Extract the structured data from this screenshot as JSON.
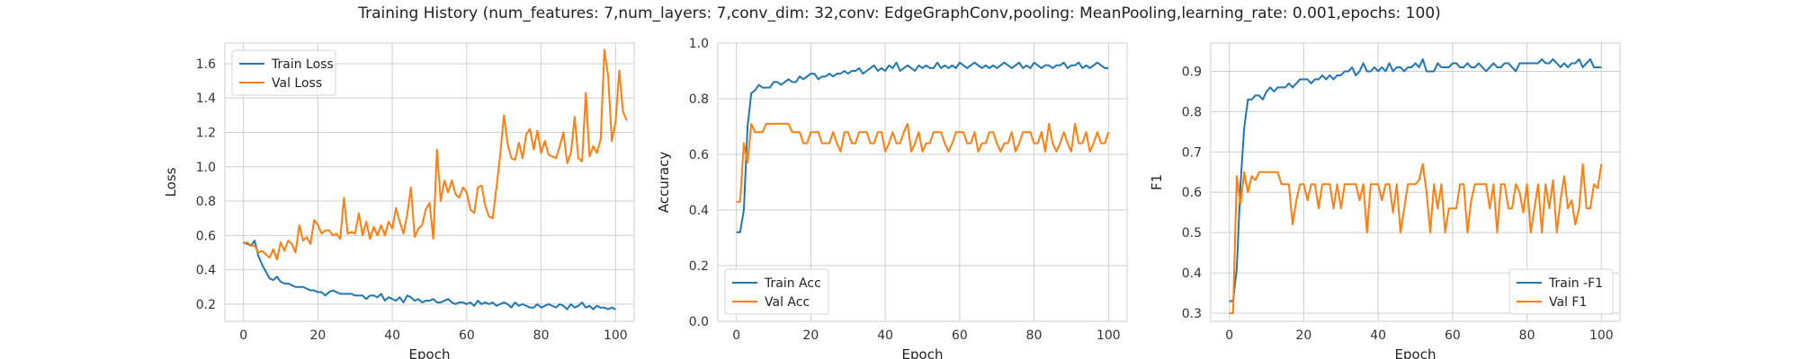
{
  "figure": {
    "suptitle": "Training History (num_features: 7,num_layers: 7,conv_dim: 32,conv: EdgeGraphConv,pooling: MeanPooling,learning_rate: 0.001,epochs: 100)"
  },
  "chart_data": [
    {
      "type": "line",
      "xlabel": "Epoch",
      "ylabel": "Loss",
      "xlim": [
        -5,
        105
      ],
      "ylim": [
        0.1,
        1.72
      ],
      "xticks": [
        0,
        20,
        40,
        60,
        80,
        100
      ],
      "xtick_labels": [
        "0",
        "20",
        "40",
        "60",
        "80",
        "100"
      ],
      "yticks": [
        0.2,
        0.4,
        0.6,
        0.8,
        1.0,
        1.2,
        1.4,
        1.6
      ],
      "ytick_labels": [
        "0.2",
        "0.4",
        "0.6",
        "0.8",
        "1.0",
        "1.2",
        "1.4",
        "1.6"
      ],
      "grid": true,
      "legend_position": "upper-left",
      "series": [
        {
          "name": "Train Loss",
          "color": "#1f77b4",
          "values": [
            0.56,
            0.55,
            0.54,
            0.57,
            0.48,
            0.43,
            0.39,
            0.35,
            0.34,
            0.36,
            0.33,
            0.32,
            0.32,
            0.31,
            0.3,
            0.3,
            0.3,
            0.29,
            0.28,
            0.28,
            0.27,
            0.27,
            0.25,
            0.27,
            0.28,
            0.27,
            0.26,
            0.26,
            0.26,
            0.26,
            0.25,
            0.25,
            0.25,
            0.23,
            0.25,
            0.25,
            0.24,
            0.26,
            0.22,
            0.24,
            0.23,
            0.22,
            0.24,
            0.21,
            0.25,
            0.24,
            0.22,
            0.23,
            0.21,
            0.22,
            0.22,
            0.23,
            0.21,
            0.21,
            0.22,
            0.23,
            0.21,
            0.2,
            0.21,
            0.21,
            0.2,
            0.21,
            0.19,
            0.22,
            0.2,
            0.21,
            0.2,
            0.21,
            0.19,
            0.2,
            0.21,
            0.2,
            0.18,
            0.21,
            0.19,
            0.2,
            0.19,
            0.18,
            0.18,
            0.2,
            0.18,
            0.19,
            0.2,
            0.19,
            0.18,
            0.2,
            0.19,
            0.17,
            0.2,
            0.18,
            0.19,
            0.21,
            0.18,
            0.19,
            0.17,
            0.19,
            0.18,
            0.18,
            0.17,
            0.18,
            0.17
          ]
        },
        {
          "name": "Val Loss",
          "color": "#ff7f0e",
          "values": [
            0.55,
            0.56,
            0.54,
            0.54,
            0.5,
            0.51,
            0.49,
            0.47,
            0.52,
            0.46,
            0.56,
            0.51,
            0.57,
            0.55,
            0.5,
            0.66,
            0.57,
            0.59,
            0.55,
            0.69,
            0.66,
            0.61,
            0.63,
            0.63,
            0.6,
            0.61,
            0.58,
            0.82,
            0.61,
            0.62,
            0.61,
            0.73,
            0.6,
            0.68,
            0.58,
            0.65,
            0.6,
            0.66,
            0.6,
            0.68,
            0.64,
            0.76,
            0.68,
            0.61,
            0.72,
            0.88,
            0.59,
            0.64,
            0.66,
            0.75,
            0.79,
            0.58,
            1.1,
            0.8,
            0.92,
            0.85,
            0.92,
            0.84,
            0.82,
            0.88,
            0.85,
            0.75,
            0.73,
            0.88,
            0.89,
            0.77,
            0.71,
            0.7,
            0.88,
            1.07,
            1.3,
            1.13,
            1.05,
            1.04,
            1.14,
            1.05,
            1.19,
            1.22,
            1.1,
            1.21,
            1.08,
            1.15,
            1.07,
            1.06,
            1.05,
            1.12,
            1.2,
            1.02,
            1.08,
            1.29,
            1.05,
            1.03,
            1.43,
            1.06,
            1.12,
            1.08,
            1.16,
            1.68,
            1.53,
            1.15,
            1.26,
            1.56,
            1.32,
            1.27
          ]
        }
      ]
    },
    {
      "type": "line",
      "xlabel": "Epoch",
      "ylabel": "Accuracy",
      "xlim": [
        -5,
        105
      ],
      "ylim": [
        0.0,
        1.0
      ],
      "xticks": [
        0,
        20,
        40,
        60,
        80,
        100
      ],
      "xtick_labels": [
        "0",
        "20",
        "40",
        "60",
        "80",
        "100"
      ],
      "yticks": [
        0.0,
        0.2,
        0.4,
        0.6,
        0.8,
        1.0
      ],
      "ytick_labels": [
        "0.0",
        "0.2",
        "0.4",
        "0.6",
        "0.8",
        "1.0"
      ],
      "grid": true,
      "legend_position": "lower-left",
      "series": [
        {
          "name": "Train Acc",
          "color": "#1f77b4",
          "values": [
            0.32,
            0.32,
            0.4,
            0.7,
            0.82,
            0.83,
            0.85,
            0.84,
            0.84,
            0.84,
            0.86,
            0.86,
            0.85,
            0.86,
            0.87,
            0.86,
            0.86,
            0.88,
            0.87,
            0.88,
            0.89,
            0.89,
            0.87,
            0.88,
            0.88,
            0.89,
            0.88,
            0.89,
            0.89,
            0.9,
            0.89,
            0.9,
            0.9,
            0.91,
            0.89,
            0.9,
            0.91,
            0.92,
            0.9,
            0.91,
            0.9,
            0.92,
            0.91,
            0.93,
            0.9,
            0.91,
            0.92,
            0.91,
            0.9,
            0.92,
            0.91,
            0.92,
            0.91,
            0.91,
            0.93,
            0.91,
            0.92,
            0.91,
            0.92,
            0.91,
            0.93,
            0.92,
            0.91,
            0.92,
            0.93,
            0.92,
            0.91,
            0.92,
            0.91,
            0.92,
            0.91,
            0.92,
            0.93,
            0.92,
            0.91,
            0.92,
            0.93,
            0.91,
            0.92,
            0.91,
            0.93,
            0.92,
            0.91,
            0.92,
            0.92,
            0.91,
            0.92,
            0.92,
            0.93,
            0.91,
            0.92,
            0.92,
            0.93,
            0.91,
            0.92,
            0.91,
            0.92,
            0.93,
            0.92,
            0.91,
            0.91
          ]
        },
        {
          "name": "Val Acc",
          "color": "#ff7f0e",
          "values": [
            0.43,
            0.43,
            0.64,
            0.57,
            0.71,
            0.68,
            0.68,
            0.68,
            0.71,
            0.71,
            0.71,
            0.71,
            0.71,
            0.71,
            0.71,
            0.68,
            0.68,
            0.68,
            0.64,
            0.64,
            0.68,
            0.68,
            0.68,
            0.64,
            0.64,
            0.64,
            0.68,
            0.64,
            0.61,
            0.68,
            0.68,
            0.64,
            0.64,
            0.68,
            0.68,
            0.68,
            0.64,
            0.64,
            0.68,
            0.68,
            0.61,
            0.64,
            0.68,
            0.64,
            0.64,
            0.68,
            0.71,
            0.61,
            0.64,
            0.68,
            0.61,
            0.64,
            0.64,
            0.68,
            0.68,
            0.68,
            0.64,
            0.61,
            0.64,
            0.68,
            0.68,
            0.68,
            0.64,
            0.64,
            0.68,
            0.61,
            0.64,
            0.64,
            0.68,
            0.68,
            0.64,
            0.61,
            0.64,
            0.64,
            0.68,
            0.61,
            0.64,
            0.68,
            0.68,
            0.68,
            0.64,
            0.64,
            0.68,
            0.61,
            0.71,
            0.64,
            0.61,
            0.64,
            0.68,
            0.64,
            0.61,
            0.71,
            0.64,
            0.64,
            0.68,
            0.61,
            0.64,
            0.68,
            0.64,
            0.64,
            0.68
          ]
        }
      ]
    },
    {
      "type": "line",
      "xlabel": "Epoch",
      "ylabel": "F1",
      "xlim": [
        -5,
        105
      ],
      "ylim": [
        0.28,
        0.97
      ],
      "xticks": [
        0,
        20,
        40,
        60,
        80,
        100
      ],
      "xtick_labels": [
        "0",
        "20",
        "40",
        "60",
        "80",
        "100"
      ],
      "yticks": [
        0.3,
        0.4,
        0.5,
        0.6,
        0.7,
        0.8,
        0.9
      ],
      "ytick_labels": [
        "0.3",
        "0.4",
        "0.5",
        "0.6",
        "0.7",
        "0.8",
        "0.9"
      ],
      "grid": true,
      "legend_position": "lower-right",
      "series": [
        {
          "name": "Train -F1",
          "color": "#1f77b4",
          "values": [
            0.33,
            0.33,
            0.41,
            0.62,
            0.76,
            0.83,
            0.83,
            0.84,
            0.84,
            0.83,
            0.85,
            0.86,
            0.85,
            0.86,
            0.86,
            0.86,
            0.87,
            0.86,
            0.87,
            0.88,
            0.88,
            0.88,
            0.87,
            0.88,
            0.88,
            0.89,
            0.88,
            0.89,
            0.88,
            0.89,
            0.89,
            0.9,
            0.9,
            0.91,
            0.89,
            0.9,
            0.92,
            0.9,
            0.9,
            0.91,
            0.9,
            0.91,
            0.9,
            0.92,
            0.9,
            0.91,
            0.91,
            0.9,
            0.91,
            0.91,
            0.92,
            0.91,
            0.93,
            0.9,
            0.9,
            0.9,
            0.92,
            0.91,
            0.91,
            0.91,
            0.92,
            0.92,
            0.91,
            0.91,
            0.92,
            0.91,
            0.91,
            0.92,
            0.91,
            0.9,
            0.91,
            0.92,
            0.91,
            0.91,
            0.92,
            0.92,
            0.91,
            0.9,
            0.92,
            0.92,
            0.92,
            0.92,
            0.92,
            0.92,
            0.93,
            0.92,
            0.92,
            0.93,
            0.92,
            0.91,
            0.92,
            0.91,
            0.92,
            0.92,
            0.93,
            0.91,
            0.92,
            0.93,
            0.91,
            0.91,
            0.91
          ]
        },
        {
          "name": "Val F1",
          "color": "#ff7f0e",
          "values": [
            0.3,
            0.3,
            0.64,
            0.57,
            0.65,
            0.6,
            0.64,
            0.63,
            0.65,
            0.65,
            0.65,
            0.65,
            0.65,
            0.65,
            0.62,
            0.62,
            0.62,
            0.52,
            0.58,
            0.62,
            0.62,
            0.58,
            0.62,
            0.62,
            0.56,
            0.62,
            0.62,
            0.62,
            0.56,
            0.62,
            0.56,
            0.62,
            0.62,
            0.62,
            0.62,
            0.58,
            0.62,
            0.5,
            0.62,
            0.62,
            0.62,
            0.58,
            0.62,
            0.62,
            0.55,
            0.62,
            0.5,
            0.56,
            0.62,
            0.62,
            0.62,
            0.63,
            0.67,
            0.6,
            0.5,
            0.62,
            0.56,
            0.62,
            0.5,
            0.56,
            0.56,
            0.56,
            0.62,
            0.62,
            0.5,
            0.58,
            0.62,
            0.62,
            0.62,
            0.62,
            0.56,
            0.62,
            0.5,
            0.62,
            0.62,
            0.56,
            0.56,
            0.62,
            0.6,
            0.55,
            0.62,
            0.5,
            0.56,
            0.62,
            0.5,
            0.62,
            0.56,
            0.63,
            0.5,
            0.58,
            0.64,
            0.56,
            0.58,
            0.52,
            0.56,
            0.67,
            0.56,
            0.56,
            0.62,
            0.61,
            0.67
          ]
        }
      ]
    }
  ]
}
